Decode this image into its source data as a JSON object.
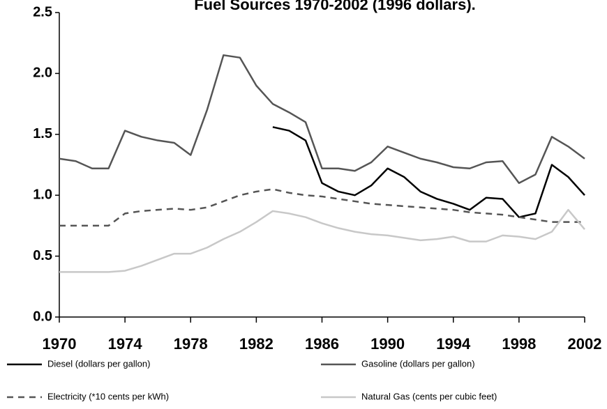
{
  "chart_data": {
    "type": "line",
    "title": "Fuel Sources 1970-2002 (1996 dollars).",
    "x": [
      1970,
      1971,
      1972,
      1973,
      1974,
      1975,
      1976,
      1977,
      1978,
      1979,
      1980,
      1981,
      1982,
      1983,
      1984,
      1985,
      1986,
      1987,
      1988,
      1989,
      1990,
      1991,
      1992,
      1993,
      1994,
      1995,
      1996,
      1997,
      1998,
      1999,
      2000,
      2001,
      2002
    ],
    "xlim": [
      1970,
      2002
    ],
    "xticks": [
      1970,
      1974,
      1978,
      1982,
      1986,
      1990,
      1994,
      1998,
      2002
    ],
    "ylim": [
      0,
      2.5
    ],
    "yticks": [
      {
        "value": 0,
        "label": "0.0"
      },
      0.5,
      {
        "value": 1,
        "label": "1.0"
      },
      1.5,
      {
        "value": 2,
        "label": "2.0"
      },
      2.5
    ],
    "series": [
      {
        "name": "Diesel (dollars per gallon)",
        "color": "#000000",
        "style": "solid",
        "values": [
          null,
          null,
          null,
          null,
          null,
          null,
          null,
          null,
          null,
          null,
          null,
          null,
          null,
          1.56,
          1.53,
          1.45,
          1.1,
          1.03,
          1.0,
          1.08,
          1.22,
          1.15,
          1.03,
          0.97,
          0.93,
          0.88,
          0.98,
          0.97,
          0.82,
          0.85,
          1.25,
          1.15,
          1.0
        ]
      },
      {
        "name": "Gasoline (dollars per gallon)",
        "color": "#555555",
        "style": "solid",
        "values": [
          1.3,
          1.28,
          1.22,
          1.22,
          1.53,
          1.48,
          1.45,
          1.43,
          1.33,
          1.7,
          2.15,
          2.13,
          1.9,
          1.75,
          1.68,
          1.6,
          1.22,
          1.22,
          1.2,
          1.27,
          1.4,
          1.35,
          1.3,
          1.27,
          1.23,
          1.22,
          1.27,
          1.28,
          1.1,
          1.17,
          1.48,
          1.4,
          1.3
        ]
      },
      {
        "name": "Electricity (*10 cents per kWh)",
        "color": "#555555",
        "style": "dashed",
        "values": [
          0.75,
          0.75,
          0.75,
          0.75,
          0.85,
          0.87,
          0.88,
          0.89,
          0.88,
          0.9,
          0.95,
          1.0,
          1.03,
          1.05,
          1.02,
          1.0,
          0.99,
          0.97,
          0.95,
          0.93,
          0.92,
          0.91,
          0.9,
          0.89,
          0.88,
          0.86,
          0.85,
          0.84,
          0.82,
          0.8,
          0.78,
          0.78,
          0.78
        ]
      },
      {
        "name": "Natural Gas (cents per cubic feet)",
        "color": "#c8c8c8",
        "style": "solid",
        "values": [
          0.37,
          0.37,
          0.37,
          0.37,
          0.38,
          0.42,
          0.47,
          0.52,
          0.52,
          0.57,
          0.64,
          0.7,
          0.78,
          0.87,
          0.85,
          0.82,
          0.77,
          0.73,
          0.7,
          0.68,
          0.67,
          0.65,
          0.63,
          0.64,
          0.66,
          0.62,
          0.62,
          0.67,
          0.66,
          0.64,
          0.7,
          0.88,
          0.72
        ]
      }
    ]
  }
}
